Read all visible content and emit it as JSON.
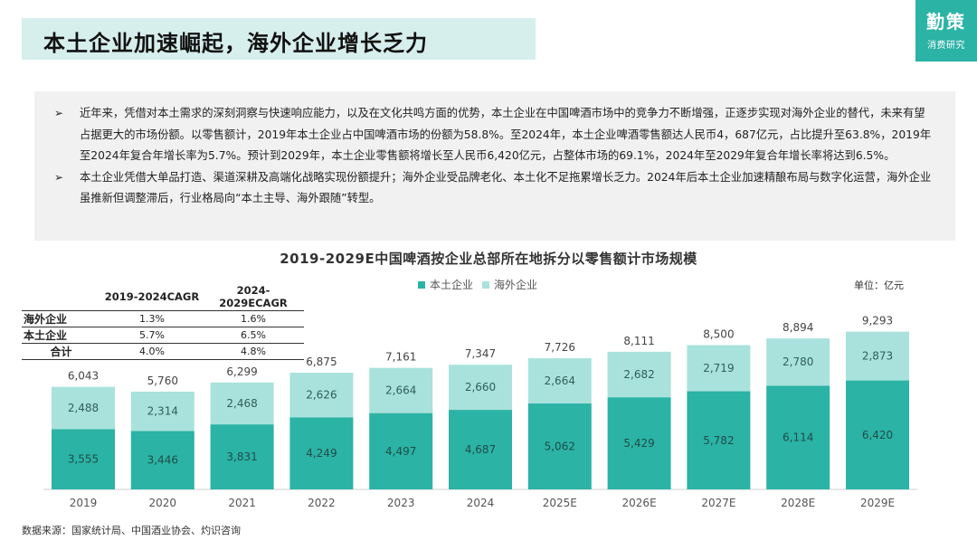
{
  "header": {
    "title": "本土企业加速崛起，海外企业增长乏力",
    "logo_main": "勤策",
    "logo_sub": "消费研究"
  },
  "summary": {
    "bullet_symbol": "➢",
    "bullets": [
      "近年来，凭借对本土需求的深刻洞察与快速响应能力，以及在文化共鸣方面的优势，本土企业在中国啤酒市场中的竞争力不断增强，正逐步实现对海外企业的替代，未来有望占据更大的市场份额。以零售额计，2019年本土企业占中国啤酒市场的份额为58.8%。至2024年，本土企业啤酒零售额达人民币4，687亿元，占比提升至63.8%，2019年至2024年复合年增长率为5.7%。预计到2029年，本土企业零售额将增长至人民币6,420亿元，占整体市场的69.1%，2024年至2029年复合年增长率将达到6.5%。",
      "本土企业凭借大单品打造、渠道深耕及高端化战略实现份额提升；海外企业受品牌老化、本土化不足拖累增长乏力。2024年后本土企业加速精酿布局与数字化运营，海外企业虽推新但调整滞后，行业格局向“本土主导、海外跟随”转型。"
    ]
  },
  "cagr_table": {
    "headers": [
      "",
      "2019-2024CAGR",
      "2024-2029ECAGR"
    ],
    "rows": [
      [
        "海外企业",
        "1.3%",
        "1.6%"
      ],
      [
        "本土企业",
        "5.7%",
        "6.5%"
      ],
      [
        "合计",
        "4.0%",
        "4.8%"
      ]
    ]
  },
  "unit_label": "单位：亿元",
  "source": "数据来源：国家统计局、中国酒业协会、灼识咨询",
  "colors": {
    "domestic": "#2bb3a5",
    "overseas": "#a9e2dc",
    "title_bg": "#d6eeec",
    "logo_bg": "#2bb3a5"
  },
  "chart_data": {
    "type": "bar",
    "stacked": true,
    "title": "2019-2029E中国啤酒按企业总部所在地拆分以零售额计市场规模",
    "categories": [
      "2019",
      "2020",
      "2021",
      "2022",
      "2023",
      "2024",
      "2025E",
      "2026E",
      "2027E",
      "2028E",
      "2029E"
    ],
    "series": [
      {
        "name": "本土企业",
        "values": [
          3555,
          3446,
          3831,
          4249,
          4497,
          4687,
          5062,
          5429,
          5782,
          6114,
          6420
        ]
      },
      {
        "name": "海外企业",
        "values": [
          2488,
          2314,
          2468,
          2626,
          2664,
          2660,
          2664,
          2682,
          2719,
          2780,
          2873
        ]
      }
    ],
    "totals": [
      6043,
      5760,
      6299,
      6875,
      7161,
      7347,
      7726,
      8111,
      8500,
      8894,
      9293
    ],
    "ylim": [
      0,
      10000
    ],
    "grid": false,
    "legend_position": "top-center"
  }
}
